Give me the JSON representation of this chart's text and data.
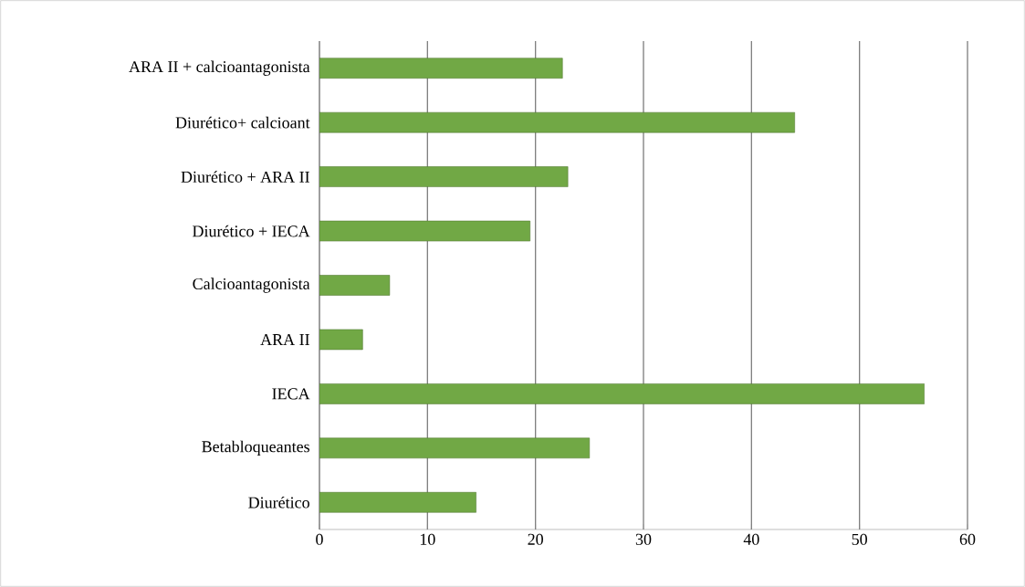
{
  "chart_data": {
    "type": "bar",
    "orientation": "horizontal",
    "categories": [
      "ARA II + calcioantagonista",
      "Diurético+ calcioant",
      "Diurético + ARA II",
      "Diurético + IECA",
      "Calcioantagonista",
      "ARA II",
      "IECA",
      "Betabloqueantes",
      "Diurético"
    ],
    "values": [
      22.5,
      44,
      23,
      19.5,
      6.5,
      4,
      56,
      25,
      14.5
    ],
    "color": "#71a845",
    "xlim": [
      0,
      60
    ],
    "xticks": [
      0,
      10,
      20,
      30,
      40,
      50,
      60
    ],
    "grid": "x"
  }
}
